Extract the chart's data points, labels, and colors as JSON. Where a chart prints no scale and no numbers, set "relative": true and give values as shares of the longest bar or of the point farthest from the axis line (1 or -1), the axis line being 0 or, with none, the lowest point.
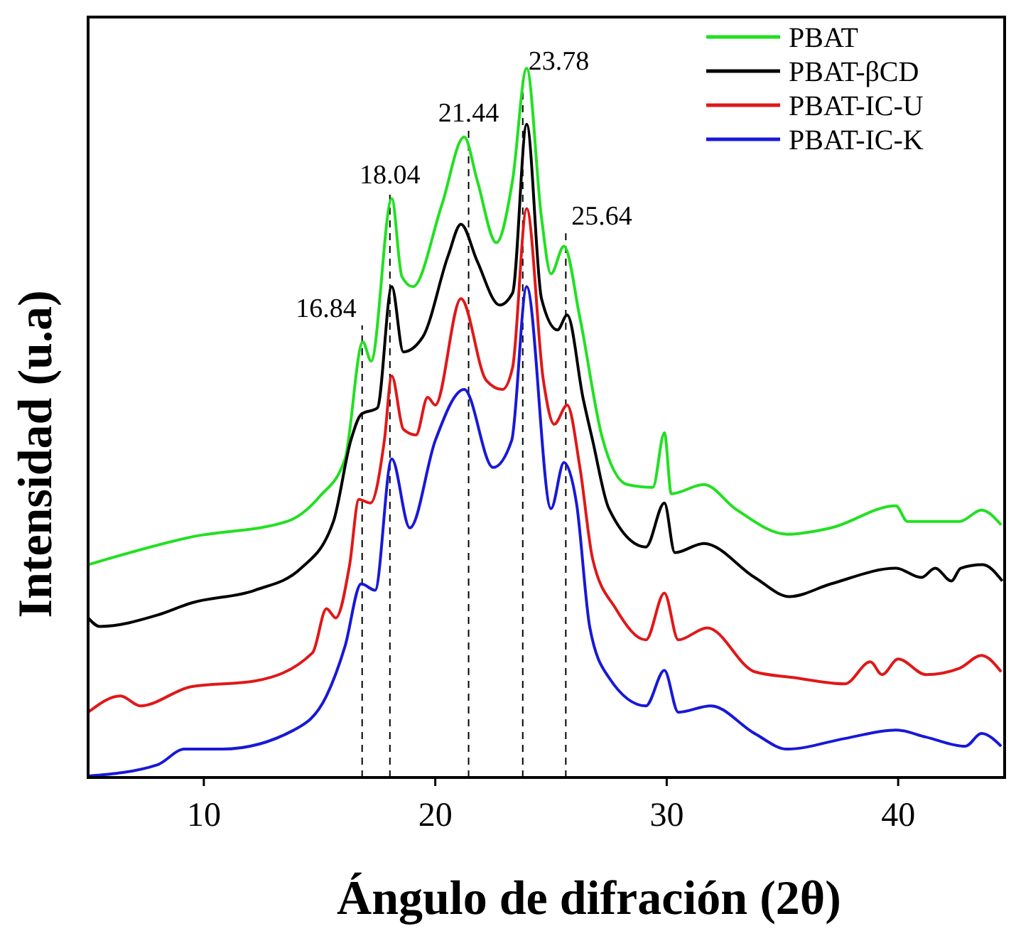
{
  "chart_data": {
    "type": "line",
    "relative": true,
    "xlabel": "Ángulo de difración (2θ)",
    "ylabel": "Intensidad (u.a)",
    "xlim": [
      5,
      44.6
    ],
    "xticks": [
      10,
      20,
      30,
      40
    ],
    "legend": "top right",
    "grid": false,
    "marker": "none",
    "line_style": "solid",
    "series": [
      {
        "name": "PBAT",
        "color": "#22e022",
        "x": [
          5,
          9.45,
          13.6,
          15,
          16.1,
          16.87,
          17.23,
          18.12,
          18.56,
          19.03,
          20.28,
          21.25,
          21.81,
          22.64,
          23.34,
          23.95,
          24.59,
          25,
          25.56,
          26.25,
          27.2,
          28.29,
          29.4,
          29.9,
          30.2,
          31.6,
          33,
          35.2,
          37.1,
          39.9,
          40.4,
          42.65,
          43.6,
          44.45
        ],
        "values": [
          0.3,
          0.339,
          0.361,
          0.396,
          0.449,
          0.614,
          0.587,
          0.816,
          0.706,
          0.692,
          0.807,
          0.903,
          0.842,
          0.754,
          0.842,
          1,
          0.789,
          0.71,
          0.749,
          0.648,
          0.481,
          0.413,
          0.409,
          0.486,
          0.4,
          0.413,
          0.378,
          0.343,
          0.352,
          0.383,
          0.361,
          0.361,
          0.377,
          0.356
        ]
      },
      {
        "name": "PBAT-βCD",
        "color": "#000000",
        "x": [
          5,
          5.5,
          8,
          9.45,
          12.2,
          14.2,
          15.6,
          16.35,
          16.8,
          17.5,
          18.12,
          18.62,
          19.46,
          20.56,
          21.11,
          21.81,
          22.78,
          23.34,
          23.95,
          24.59,
          25.28,
          25.7,
          26.39,
          26.8,
          27.5,
          29.1,
          29.9,
          30.35,
          31.6,
          33.8,
          35.3,
          37.1,
          39.9,
          41,
          41.6,
          42.3,
          42.7,
          43.65,
          44.5
        ],
        "values": [
          0.225,
          0.213,
          0.229,
          0.246,
          0.264,
          0.295,
          0.361,
          0.475,
          0.512,
          0.521,
          0.692,
          0.6,
          0.621,
          0.736,
          0.78,
          0.728,
          0.666,
          0.683,
          0.921,
          0.675,
          0.631,
          0.652,
          0.534,
          0.475,
          0.379,
          0.325,
          0.387,
          0.317,
          0.33,
          0.282,
          0.255,
          0.273,
          0.295,
          0.282,
          0.295,
          0.277,
          0.295,
          0.3,
          0.277
        ]
      },
      {
        "name": "PBAT-IC-U",
        "color": "#e01818",
        "x": [
          5,
          6.4,
          7.25,
          9.45,
          12.2,
          14.7,
          15.3,
          15.7,
          16.3,
          16.7,
          17.2,
          17.8,
          18.12,
          18.62,
          19.17,
          19.67,
          20,
          21.11,
          22.2,
          22.9,
          23.34,
          23.95,
          24.67,
          25.14,
          25.7,
          26.25,
          26.8,
          27.8,
          29.1,
          29.9,
          30.5,
          31.75,
          33.8,
          35.45,
          37.7,
          38.8,
          39.3,
          40,
          41.2,
          42.65,
          43.6,
          44.45
        ],
        "values": [
          0.092,
          0.115,
          0.101,
          0.128,
          0.136,
          0.176,
          0.238,
          0.225,
          0.3,
          0.392,
          0.387,
          0.475,
          0.566,
          0.491,
          0.483,
          0.536,
          0.525,
          0.675,
          0.56,
          0.547,
          0.578,
          0.802,
          0.56,
          0.498,
          0.525,
          0.437,
          0.308,
          0.238,
          0.194,
          0.26,
          0.194,
          0.211,
          0.149,
          0.141,
          0.132,
          0.163,
          0.145,
          0.167,
          0.145,
          0.154,
          0.172,
          0.149
        ]
      },
      {
        "name": "PBAT-IC-K",
        "color": "#1818d8",
        "x": [
          5,
          8,
          9.16,
          10.8,
          13.9,
          15.3,
          16.1,
          16.8,
          17.4,
          18.12,
          18.9,
          20,
          21.25,
          22.5,
          23.3,
          23.95,
          25,
          25.56,
          26.1,
          26.68,
          27.5,
          29.1,
          29.9,
          30.5,
          31.9,
          33.8,
          35.2,
          37.7,
          39.9,
          41.2,
          42.9,
          43.6,
          44.45
        ],
        "values": [
          0.002,
          0.018,
          0.04,
          0.04,
          0.067,
          0.115,
          0.185,
          0.273,
          0.264,
          0.449,
          0.352,
          0.475,
          0.547,
          0.437,
          0.475,
          0.692,
          0.379,
          0.444,
          0.387,
          0.211,
          0.141,
          0.101,
          0.151,
          0.092,
          0.101,
          0.062,
          0.04,
          0.055,
          0.067,
          0.057,
          0.044,
          0.062,
          0.044
        ]
      }
    ],
    "ref_lines": [
      {
        "axis": "x",
        "value": 16.84,
        "label": "16.84",
        "line_style": "dashed",
        "color": "#000000"
      },
      {
        "axis": "x",
        "value": 18.04,
        "label": "18.04",
        "line_style": "dashed",
        "color": "#000000"
      },
      {
        "axis": "x",
        "value": 21.44,
        "label": "21.44",
        "line_style": "dashed",
        "color": "#000000"
      },
      {
        "axis": "x",
        "value": 23.78,
        "label": "23.78",
        "line_style": "dashed",
        "color": "#000000"
      },
      {
        "axis": "x",
        "value": 25.64,
        "label": "25.64",
        "line_style": "dashed",
        "color": "#000000"
      }
    ]
  }
}
